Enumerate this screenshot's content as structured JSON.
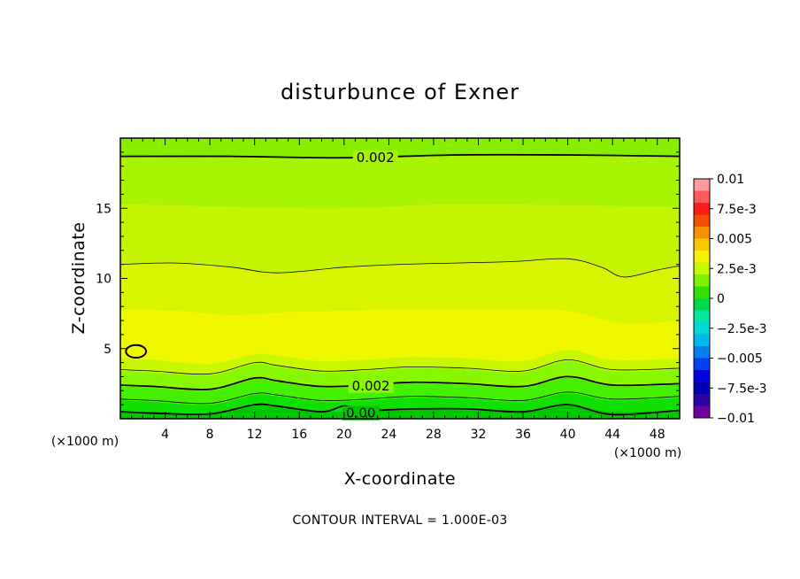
{
  "chart_data": {
    "type": "contour",
    "title": "disturbunce of Exner",
    "xlabel": "X-coordinate",
    "ylabel": "Z-coordinate",
    "x_unit_label": "(×1000 m)",
    "z_unit_label": "(×1000 m)",
    "xlim": [
      0,
      50
    ],
    "ylim": [
      0,
      20
    ],
    "x_ticks": [
      4,
      8,
      12,
      16,
      20,
      24,
      28,
      32,
      36,
      40,
      44,
      48
    ],
    "y_ticks": [
      5,
      10,
      15
    ],
    "contour_interval_text": "CONTOUR INTERVAL = 1.000E-03",
    "fill_bands": [
      {
        "from_color": "#00c800",
        "z_top": [
          [
            0,
            0.4
          ],
          [
            3,
            0.5
          ],
          [
            8,
            0.4
          ],
          [
            12,
            0.9
          ],
          [
            14,
            0.8
          ],
          [
            18,
            0.5
          ],
          [
            22,
            0.6
          ],
          [
            26,
            0.7
          ],
          [
            31,
            0.6
          ],
          [
            36,
            0.5
          ],
          [
            40,
            0.9
          ],
          [
            44,
            0.5
          ],
          [
            50,
            0.6
          ]
        ]
      },
      {
        "from_color": "#10e000",
        "z_top": [
          [
            0,
            1.3
          ],
          [
            3,
            1.2
          ],
          [
            8,
            1.0
          ],
          [
            12,
            1.7
          ],
          [
            14,
            1.6
          ],
          [
            18,
            1.2
          ],
          [
            22,
            1.3
          ],
          [
            26,
            1.5
          ],
          [
            31,
            1.4
          ],
          [
            36,
            1.2
          ],
          [
            40,
            1.8
          ],
          [
            44,
            1.3
          ],
          [
            50,
            1.5
          ]
        ]
      },
      {
        "from_color": "#44f000",
        "z_top": [
          [
            0,
            2.3
          ],
          [
            3,
            2.2
          ],
          [
            8,
            2.0
          ],
          [
            12,
            2.8
          ],
          [
            14,
            2.6
          ],
          [
            18,
            2.2
          ],
          [
            22,
            2.3
          ],
          [
            26,
            2.5
          ],
          [
            31,
            2.4
          ],
          [
            36,
            2.2
          ],
          [
            40,
            2.9
          ],
          [
            44,
            2.3
          ],
          [
            50,
            2.4
          ]
        ]
      },
      {
        "from_color": "#88f800",
        "z_top": [
          [
            0,
            3.4
          ],
          [
            3,
            3.3
          ],
          [
            8,
            3.1
          ],
          [
            12,
            3.9
          ],
          [
            14,
            3.7
          ],
          [
            18,
            3.3
          ],
          [
            22,
            3.4
          ],
          [
            26,
            3.6
          ],
          [
            31,
            3.5
          ],
          [
            36,
            3.3
          ],
          [
            40,
            4.1
          ],
          [
            44,
            3.4
          ],
          [
            50,
            3.5
          ]
        ]
      },
      {
        "from_color": "#c8f800",
        "z_top": [
          [
            0,
            4.3
          ],
          [
            3,
            4.2
          ],
          [
            8,
            3.9
          ],
          [
            12,
            4.6
          ],
          [
            14,
            4.5
          ],
          [
            18,
            4.1
          ],
          [
            22,
            4.2
          ],
          [
            26,
            4.4
          ],
          [
            31,
            4.3
          ],
          [
            36,
            4.1
          ],
          [
            40,
            4.9
          ],
          [
            44,
            4.2
          ],
          [
            50,
            4.3
          ]
        ]
      },
      {
        "from_color": "#f0f800",
        "z_top": [
          [
            0,
            7.8
          ],
          [
            5,
            7.7
          ],
          [
            10,
            7.4
          ],
          [
            15,
            7.6
          ],
          [
            20,
            7.7
          ],
          [
            25,
            7.8
          ],
          [
            30,
            7.8
          ],
          [
            35,
            7.8
          ],
          [
            40,
            7.7
          ],
          [
            45,
            6.8
          ],
          [
            50,
            7.0
          ]
        ]
      },
      {
        "from_color": "#d8f400",
        "z_top": [
          [
            0,
            11.0
          ],
          [
            5,
            11.1
          ],
          [
            10,
            10.8
          ],
          [
            14,
            10.4
          ],
          [
            20,
            10.8
          ],
          [
            25,
            11.0
          ],
          [
            30,
            11.1
          ],
          [
            35,
            11.2
          ],
          [
            40,
            11.4
          ],
          [
            43,
            10.8
          ],
          [
            45,
            10.1
          ],
          [
            48,
            10.6
          ],
          [
            50,
            10.9
          ]
        ]
      },
      {
        "from_color": "#c4f400",
        "z_top": [
          [
            0,
            15.3
          ],
          [
            10,
            15.1
          ],
          [
            20,
            15.0
          ],
          [
            30,
            15.3
          ],
          [
            40,
            15.2
          ],
          [
            50,
            15.1
          ]
        ]
      },
      {
        "from_color": "#a8f400",
        "z_top": [
          [
            0,
            18.7
          ],
          [
            10,
            18.7
          ],
          [
            20,
            18.6
          ],
          [
            30,
            18.8
          ],
          [
            40,
            18.8
          ],
          [
            50,
            18.7
          ]
        ]
      },
      {
        "from_color": "#88ee00",
        "z_top": [
          [
            0,
            20
          ],
          [
            50,
            20
          ]
        ]
      }
    ],
    "contour_lines": [
      {
        "level": 0.0,
        "style": "thick",
        "points": [
          [
            0,
            0.5
          ],
          [
            3,
            0.4
          ],
          [
            8,
            0.35
          ],
          [
            12,
            1.0
          ],
          [
            14,
            0.9
          ],
          [
            18,
            0.5
          ],
          [
            20,
            0.9
          ],
          [
            22,
            0.6
          ],
          [
            26,
            0.7
          ],
          [
            31,
            0.7
          ],
          [
            36,
            0.5
          ],
          [
            40,
            1.0
          ],
          [
            44,
            0.3
          ],
          [
            50,
            0.6
          ]
        ]
      },
      {
        "level": 0.001,
        "style": "thin",
        "points": [
          [
            0,
            1.4
          ],
          [
            3,
            1.3
          ],
          [
            8,
            1.1
          ],
          [
            12,
            1.8
          ],
          [
            14,
            1.7
          ],
          [
            18,
            1.3
          ],
          [
            22,
            1.4
          ],
          [
            26,
            1.6
          ],
          [
            31,
            1.5
          ],
          [
            36,
            1.3
          ],
          [
            40,
            1.9
          ],
          [
            44,
            1.4
          ],
          [
            50,
            1.6
          ]
        ]
      },
      {
        "level": 0.002,
        "style": "thick",
        "points": [
          [
            0,
            2.4
          ],
          [
            3,
            2.3
          ],
          [
            8,
            2.1
          ],
          [
            12,
            2.9
          ],
          [
            14,
            2.7
          ],
          [
            18,
            2.3
          ],
          [
            22,
            2.4
          ],
          [
            26,
            2.6
          ],
          [
            31,
            2.5
          ],
          [
            36,
            2.3
          ],
          [
            40,
            3.0
          ],
          [
            44,
            2.4
          ],
          [
            50,
            2.5
          ]
        ]
      },
      {
        "level": 0.003,
        "style": "thin",
        "points": [
          [
            0,
            3.5
          ],
          [
            3,
            3.4
          ],
          [
            8,
            3.2
          ],
          [
            12,
            4.0
          ],
          [
            14,
            3.8
          ],
          [
            18,
            3.4
          ],
          [
            22,
            3.5
          ],
          [
            26,
            3.7
          ],
          [
            31,
            3.6
          ],
          [
            36,
            3.4
          ],
          [
            40,
            4.2
          ],
          [
            44,
            3.5
          ],
          [
            50,
            3.6
          ]
        ]
      },
      {
        "level": 0.003,
        "style": "thin",
        "points": [
          [
            0,
            11.0
          ],
          [
            5,
            11.1
          ],
          [
            10,
            10.8
          ],
          [
            14,
            10.4
          ],
          [
            20,
            10.8
          ],
          [
            25,
            11.0
          ],
          [
            30,
            11.1
          ],
          [
            35,
            11.2
          ],
          [
            40,
            11.4
          ],
          [
            43,
            10.8
          ],
          [
            45,
            10.1
          ],
          [
            48,
            10.6
          ],
          [
            50,
            10.9
          ]
        ]
      },
      {
        "level": 0.002,
        "style": "thick",
        "points": [
          [
            0,
            18.7
          ],
          [
            10,
            18.7
          ],
          [
            20,
            18.6
          ],
          [
            30,
            18.8
          ],
          [
            40,
            18.8
          ],
          [
            50,
            18.7
          ]
        ]
      }
    ],
    "contour_labels": [
      {
        "text": "0.002",
        "x": 22.8,
        "z": 18.6
      },
      {
        "text": "0.002",
        "x": 22.4,
        "z": 2.35
      },
      {
        "text": "0.00",
        "x": 21.5,
        "z": 0.4
      }
    ],
    "closed_contour": {
      "x": 1.4,
      "z": 4.8,
      "rx": 0.9,
      "rz": 0.45
    },
    "colorbar": {
      "ticks": [
        "0.01",
        "7.5e-3",
        "0.005",
        "2.5e-3",
        "0",
        "−2.5e-3",
        "−0.005",
        "−7.5e-3",
        "−0.01"
      ],
      "colors": [
        "#ff9a9a",
        "#ff5a5a",
        "#ff1a1a",
        "#f05000",
        "#f89000",
        "#f8c800",
        "#f8f000",
        "#c8f800",
        "#80f000",
        "#30e000",
        "#00d850",
        "#00e8a0",
        "#00d8d8",
        "#00b8f0",
        "#0080f0",
        "#0040f0",
        "#0000e0",
        "#0000b0",
        "#3000a0",
        "#7000a0"
      ]
    }
  }
}
